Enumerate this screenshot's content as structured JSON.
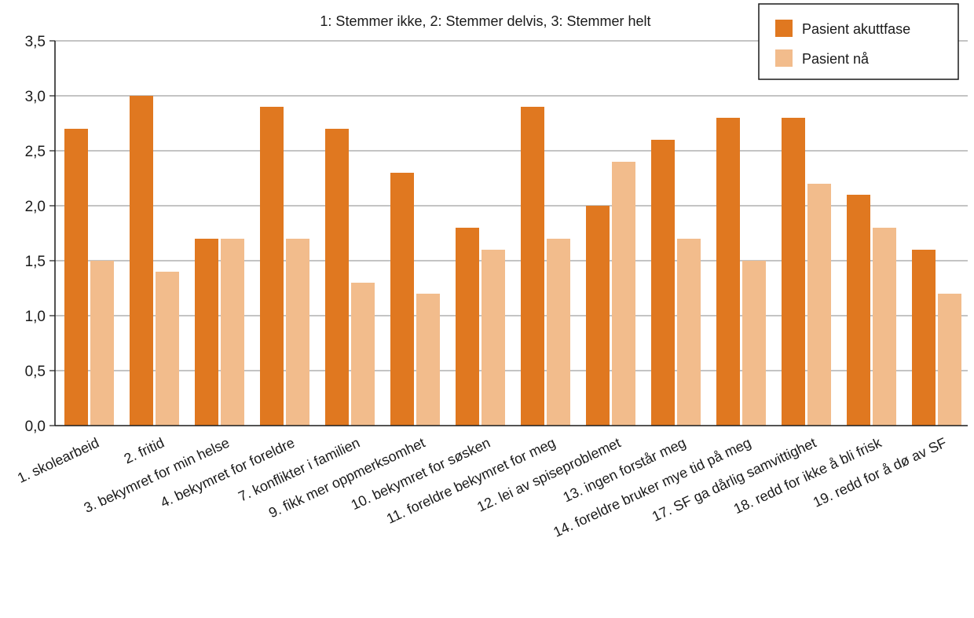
{
  "chart_data": {
    "type": "bar",
    "subtitle": "1: Stemmer ikke, 2: Stemmer delvis, 3: Stemmer helt",
    "categories": [
      "1. skolearbeid",
      "2. fritid",
      "3. bekymret for  min helse",
      "4. bekymret for foreldre",
      "7. konflikter i familien",
      "9. fikk mer oppmerksomhet",
      "10. bekymret for søsken",
      "11. foreldre bekymret for meg",
      "12. lei av spiseproblemet",
      "13. ingen forstår meg",
      "14. foreldre bruker mye tid på meg",
      "17. SF ga dårlig samvittighet",
      "18. redd for ikke å bli frisk",
      "19. redd for å dø av SF"
    ],
    "series": [
      {
        "name": "Pasient akuttfase",
        "color": "#E07820",
        "values": [
          2.7,
          3.0,
          1.7,
          2.9,
          2.7,
          2.3,
          1.8,
          2.9,
          2.0,
          2.6,
          2.8,
          2.8,
          2.1,
          1.6
        ]
      },
      {
        "name": "Pasient nå",
        "color": "#F2BC8C",
        "values": [
          1.5,
          1.4,
          1.7,
          1.7,
          1.3,
          1.2,
          1.6,
          1.7,
          2.4,
          1.7,
          1.5,
          2.2,
          1.8,
          1.2
        ]
      }
    ],
    "y_ticks": [
      "0,0",
      "0,5",
      "1,0",
      "1,5",
      "2,0",
      "2,5",
      "3,0",
      "3,5"
    ],
    "ylim": [
      0,
      3.5
    ],
    "grid": true,
    "legend_position": "top-right"
  }
}
